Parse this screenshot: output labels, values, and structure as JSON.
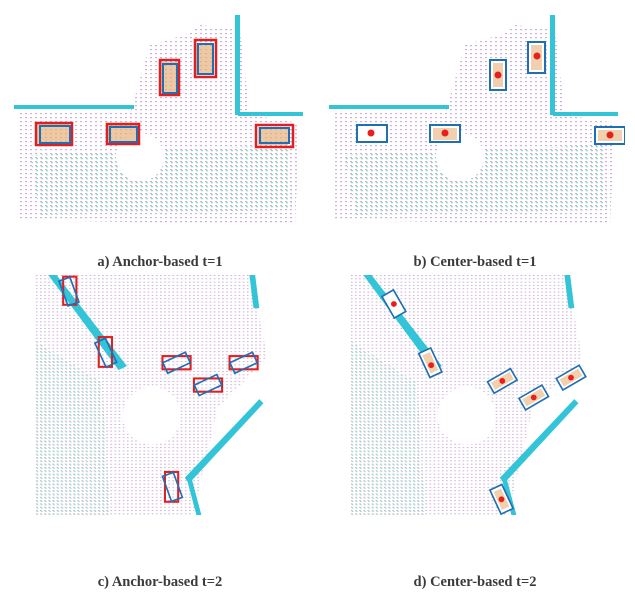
{
  "captions": {
    "a": "a) Anchor-based t=1",
    "b": "b) Center-based t=1",
    "c": "c) Anchor-based t=2",
    "d": "d) Center-based t=2"
  },
  "colors": {
    "anchor_box": "#e02020",
    "detection_box": "#1f6fb5",
    "center_point": "#e8201b",
    "wall": "#33c4d8",
    "ground": "#c9a6d6",
    "vegetation": "#7fd6b0",
    "vehicle": "#e7b07a"
  },
  "panels": [
    {
      "id": "a",
      "method": "anchor",
      "time": 1,
      "object_count": 5
    },
    {
      "id": "b",
      "method": "center",
      "time": 1,
      "object_count": 5
    },
    {
      "id": "c",
      "method": "anchor",
      "time": 2,
      "object_count": 6
    },
    {
      "id": "d",
      "method": "center",
      "time": 2,
      "object_count": 6
    }
  ]
}
